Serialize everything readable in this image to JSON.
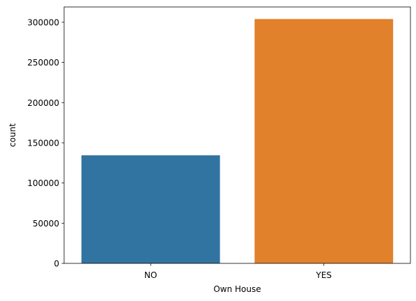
{
  "chart_data": {
    "type": "bar",
    "title": "",
    "xlabel": "Own House",
    "ylabel": "count",
    "categories": [
      "NO",
      "YES"
    ],
    "values": [
      134500,
      304000
    ],
    "ylim": [
      0,
      319000
    ],
    "yticks": [
      0,
      50000,
      100000,
      150000,
      200000,
      250000,
      300000
    ],
    "ytick_labels": [
      "0",
      "50000",
      "100000",
      "150000",
      "200000",
      "250000",
      "300000"
    ],
    "colors": [
      "#3274a1",
      "#e1812c"
    ],
    "grid": false,
    "legend": "none"
  }
}
